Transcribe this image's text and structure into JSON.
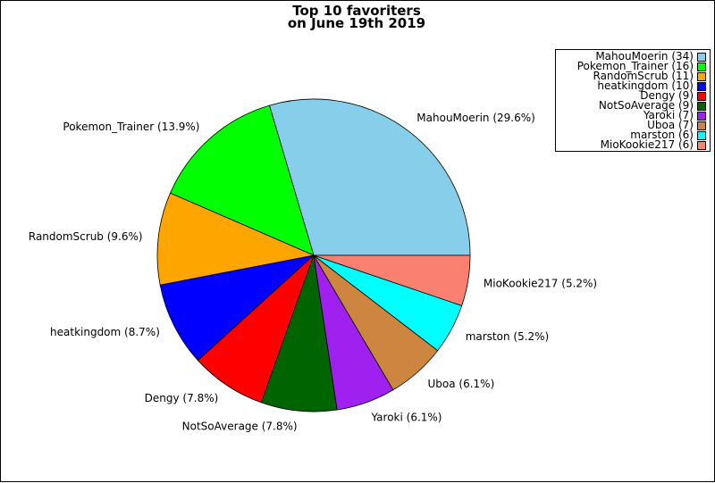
{
  "chart_data": {
    "type": "pie",
    "title": [
      "Top 10 favoriters",
      "on June 19th 2019"
    ],
    "slices": [
      {
        "name": "MahouMoerin",
        "value": 34,
        "percent_label": "MahouMoerin (29.6%)",
        "legend_label": "MahouMoerin (34)",
        "color": "#87CEEB"
      },
      {
        "name": "Pokemon_Trainer",
        "value": 16,
        "percent_label": "Pokemon_Trainer (13.9%)",
        "legend_label": "Pokemon_Trainer (16)",
        "color": "#00FF00"
      },
      {
        "name": "RandomScrub",
        "value": 11,
        "percent_label": "RandomScrub (9.6%)",
        "legend_label": "RandomScrub (11)",
        "color": "#FFA500"
      },
      {
        "name": "heatkingdom",
        "value": 10,
        "percent_label": "heatkingdom (8.7%)",
        "legend_label": "heatkingdom (10)",
        "color": "#0000FF"
      },
      {
        "name": "Dengy",
        "value": 9,
        "percent_label": "Dengy (7.8%)",
        "legend_label": "Dengy (9)",
        "color": "#FF0000"
      },
      {
        "name": "NotSoAverage",
        "value": 9,
        "percent_label": "NotSoAverage (7.8%)",
        "legend_label": "NotSoAverage (9)",
        "color": "#006400"
      },
      {
        "name": "Yaroki",
        "value": 7,
        "percent_label": "Yaroki (6.1%)",
        "legend_label": "Yaroki (7)",
        "color": "#A020F0"
      },
      {
        "name": "Uboa",
        "value": 7,
        "percent_label": "Uboa (6.1%)",
        "legend_label": "Uboa (7)",
        "color": "#CD853F"
      },
      {
        "name": "marston",
        "value": 6,
        "percent_label": "marston (5.2%)",
        "legend_label": "marston (6)",
        "color": "#00FFFF"
      },
      {
        "name": "MioKookie217",
        "value": 6,
        "percent_label": "MioKookie217 (5.2%)",
        "legend_label": "MioKookie217 (6)",
        "color": "#FA8072"
      }
    ],
    "start_angle_deg": 0,
    "direction": "counterclockwise",
    "legend_position": "top-right"
  }
}
